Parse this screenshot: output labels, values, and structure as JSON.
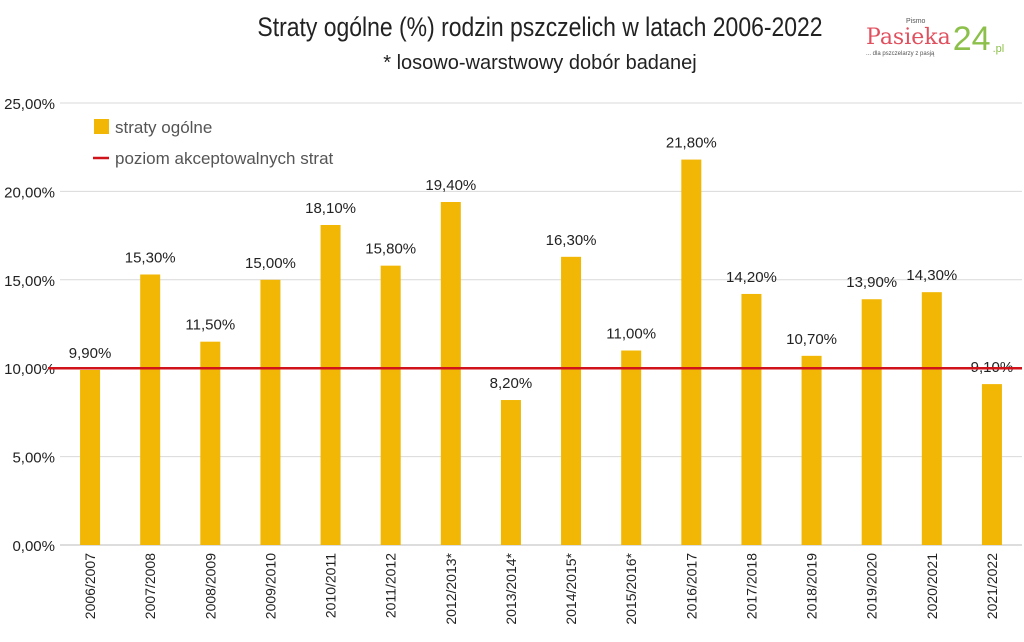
{
  "logo": {
    "small": "Pismo",
    "main": "Pasieka",
    "num": "24",
    "tld": ".pl",
    "tagline": "... dla pszczelarzy z pasją"
  },
  "chart_data": {
    "type": "bar",
    "title": "Straty ogólne (%) rodzin pszczelich w latach 2006-2022",
    "subtitle": "* losowo-warstwowy dobór badanej",
    "categories": [
      "2006/2007",
      "2007/2008",
      "2008/2009",
      "2009/2010",
      "2010/2011",
      "2011/2012",
      "2012/2013*",
      "2013/2014*",
      "2014/2015*",
      "2015/2016*",
      "2016/2017",
      "2017/2018",
      "2018/2019",
      "2019/2020",
      "2020/2021",
      "2021/2022"
    ],
    "series": [
      {
        "name": "straty ogólne",
        "values": [
          9.9,
          15.3,
          11.5,
          15.0,
          18.1,
          15.8,
          19.4,
          8.2,
          16.3,
          11.0,
          21.8,
          14.2,
          10.7,
          13.9,
          14.3,
          9.1
        ],
        "color": "#f2b705"
      }
    ],
    "data_labels": [
      "9,90%",
      "15,30%",
      "11,50%",
      "15,00%",
      "18,10%",
      "15,80%",
      "19,40%",
      "8,20%",
      "16,30%",
      "11,00%",
      "21,80%",
      "14,20%",
      "10,70%",
      "13,90%",
      "14,30%",
      "9,10%"
    ],
    "reference_line": {
      "name": "poziom akceptowalnych strat",
      "value": 10,
      "color": "#d0121b"
    },
    "ylim": [
      0,
      25
    ],
    "yticks": [
      0,
      5,
      10,
      15,
      20,
      25
    ],
    "ytick_labels": [
      "0,00%",
      "5,00%",
      "10,00%",
      "15,00%",
      "20,00%",
      "25,00%"
    ],
    "grid": true,
    "legend": "top-left"
  }
}
